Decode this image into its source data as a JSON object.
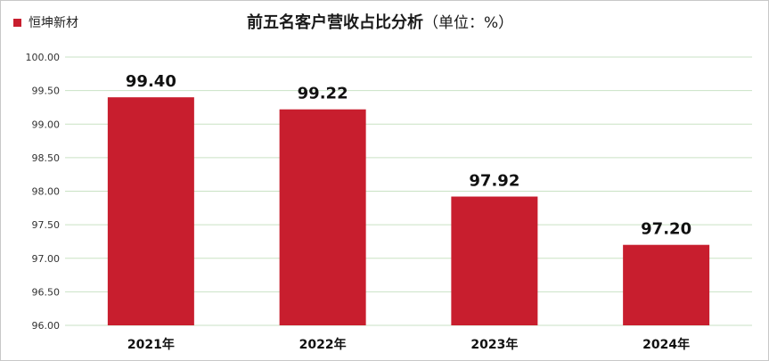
{
  "title": "前五名客户营收占比分析",
  "title_unit": "（单位：%）",
  "legend": {
    "series_name": "恒坤新材",
    "color": "#c81e2e"
  },
  "chart_data": {
    "type": "bar",
    "title": "前五名客户营收占比分析（单位：%）",
    "categories": [
      "2021年",
      "2022年",
      "2023年",
      "2024年"
    ],
    "series": [
      {
        "name": "恒坤新材",
        "values": [
          99.4,
          99.22,
          97.92,
          97.2
        ],
        "color": "#c81e2e"
      }
    ],
    "data_labels": [
      "99.40",
      "99.22",
      "97.92",
      "97.20"
    ],
    "y_ticks": [
      "96.00",
      "96.50",
      "97.00",
      "97.50",
      "98.00",
      "98.50",
      "99.00",
      "99.50",
      "100.00"
    ],
    "ylim": [
      96,
      100
    ],
    "xlabel": "",
    "ylabel": "",
    "grid": true,
    "gridline_color": "#c9e2c4",
    "legend_position": "top-left"
  }
}
